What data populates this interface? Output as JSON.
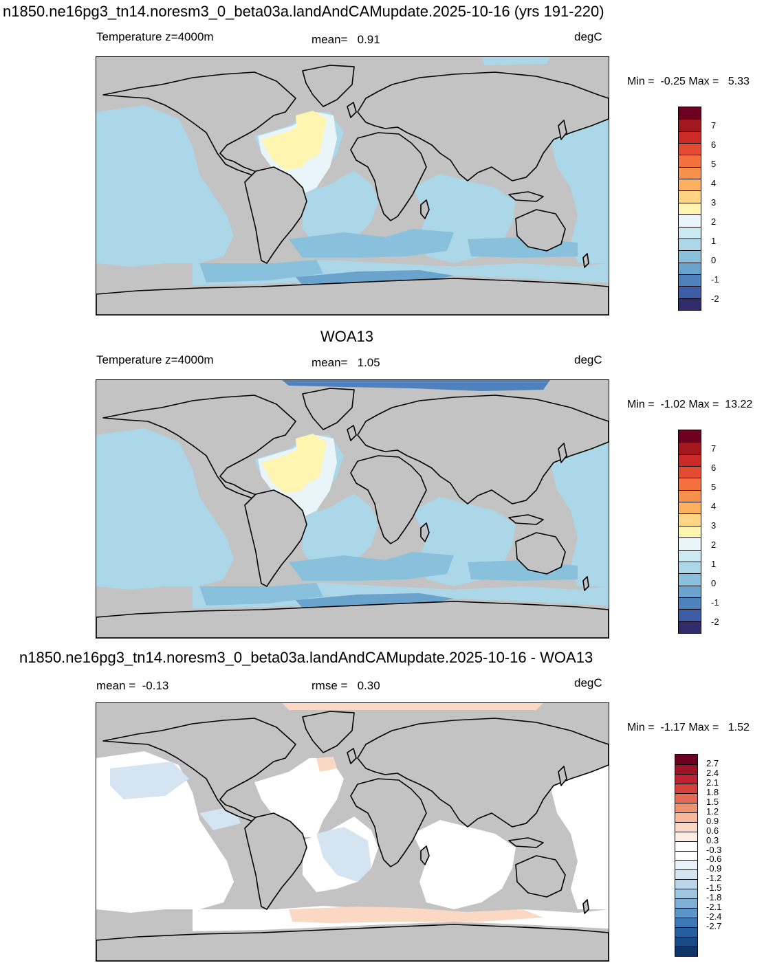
{
  "panel1": {
    "title": "n1850.ne16pg3_tn14.noresm3_0_beta03a.landAndCAMupdate.2025-10-16 (yrs 191-220)",
    "field": "Temperature z=4000m",
    "stat": "mean=   0.91",
    "units": "degC",
    "minmax": "Min =  -0.25 Max =   5.33"
  },
  "panel2": {
    "title": "WOA13",
    "field": "Temperature z=4000m",
    "stat": "mean=   1.05",
    "units": "degC",
    "minmax": "Min =  -1.02 Max =  13.22"
  },
  "panel3": {
    "title": "n1850.ne16pg3_tn14.noresm3_0_beta03a.landAndCAMupdate.2025-10-16 - WOA13",
    "stat_left": "mean =  -0.13",
    "stat_mid": "rmse =   0.30",
    "units": "degC",
    "minmax": "Min =  -1.17 Max =   1.52"
  },
  "colorbar_abs": {
    "colors": [
      "#6b0020",
      "#a3171f",
      "#cb2a26",
      "#e34b33",
      "#f2713f",
      "#f6904a",
      "#fbb15f",
      "#fdd584",
      "#fef5b1",
      "#e9f5f8",
      "#cde9f2",
      "#acd7e8",
      "#89c0dc",
      "#6aa4cd",
      "#4f82bd",
      "#3d5ea7",
      "#312c6b"
    ],
    "labels": [
      "7",
      "6",
      "5",
      "4",
      "3",
      "2",
      "1",
      "0",
      "-1",
      "-2"
    ],
    "label_indices": [
      1,
      3,
      5,
      7,
      9,
      11,
      13,
      15,
      17,
      19
    ]
  },
  "colorbar_diff": {
    "colors": [
      "#6b0020",
      "#9e1327",
      "#bf2232",
      "#d6413e",
      "#e36b55",
      "#ee9271",
      "#f7b899",
      "#fbd8c3",
      "#fdece2",
      "#ffffff",
      "#ffffff",
      "#eaf1f8",
      "#d4e4f1",
      "#bcd5e8",
      "#9ec6e0",
      "#7eb0d5",
      "#5a96c8",
      "#3c79b6",
      "#255fa0",
      "#174a86",
      "#0f3566"
    ],
    "labels": [
      "2.7",
      "2.4",
      "2.1",
      "1.8",
      "1.5",
      "1.2",
      "0.9",
      "0.6",
      "0.3",
      "-0.3",
      "-0.6",
      "-0.9",
      "-1.2",
      "-1.5",
      "-1.8",
      "-2.1",
      "-2.4",
      "-2.7"
    ]
  },
  "colors": {
    "land": "#c3c3c3",
    "ocean_abs": "#acd7e8",
    "ocean_cold": "#89c0dc",
    "deep_cold": "#6aa4cd",
    "atlantic_warm": "#e9f5f8",
    "nadw": "#fef5b1",
    "diff_ocean": "#ffffff",
    "diff_pos": "#fbd8c3",
    "diff_neg": "#d4e4f1"
  }
}
